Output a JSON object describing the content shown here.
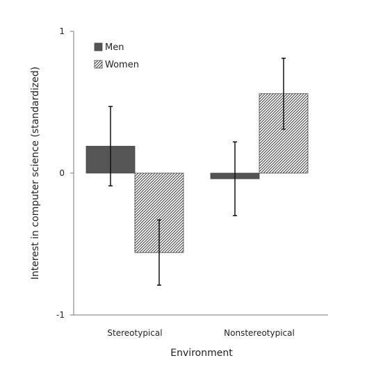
{
  "chart_data": {
    "type": "bar",
    "categories": [
      "Stereotypical",
      "Nonstereotypical"
    ],
    "series": [
      {
        "name": "Men",
        "values": [
          0.19,
          -0.04
        ],
        "error": [
          0.28,
          0.26
        ],
        "color": "#555555",
        "pattern": "solid"
      },
      {
        "name": "Women",
        "values": [
          -0.56,
          0.56
        ],
        "error": [
          0.23,
          0.25
        ],
        "color": "#555555",
        "pattern": "diagonal-hatch"
      }
    ],
    "xlabel": "Environment",
    "ylabel": "Interest in computer science (standardized)",
    "ylim": [
      -1,
      1
    ],
    "yticks": [
      "-1",
      "0",
      "1"
    ],
    "grid": false,
    "legend_position": "top-left"
  }
}
